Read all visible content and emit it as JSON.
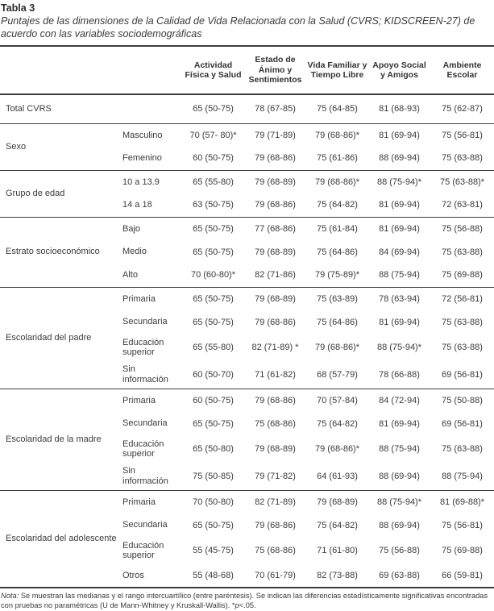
{
  "table": {
    "label": "Tabla 3",
    "title": "Puntajes de las dimensiones de la Calidad de Vida Relacionada con la Salud (CVRS; KIDSCREEN-27) de acuerdo con las variables sociodemográficas",
    "columns": [
      "Actividad Física y Salud",
      "Estado de Ánimo y Sentimientos",
      "Vida Familiar y Tiempo Libre",
      "Apoyo Social y Amigos",
      "Ambiente Escolar"
    ],
    "sections": [
      {
        "variable": "Total CVRS",
        "rows": [
          {
            "category": "",
            "values": [
              "65 (50-75)",
              "78 (67-85)",
              "75 (64-85)",
              "81 (68-93)",
              "75 (62-87)"
            ]
          }
        ]
      },
      {
        "variable": "Sexo",
        "rows": [
          {
            "category": "Masculino",
            "values": [
              "70 (57- 80)*",
              "79 (71-89)",
              "79 (68-86)*",
              "81 (69-94)",
              "75 (56-81)"
            ]
          },
          {
            "category": "Femenino",
            "values": [
              "60 (50-75)",
              "79 (68-86)",
              "75 (61-86)",
              "88 (69-94)",
              "75 (63-88)"
            ]
          }
        ]
      },
      {
        "variable": "Grupo de edad",
        "rows": [
          {
            "category": "10 a 13.9",
            "values": [
              "65 (55-80)",
              "79 (68-89)",
              "79 (68-86)*",
              "88 (75-94)*",
              "75 (63-88)*"
            ]
          },
          {
            "category": "14 a 18",
            "values": [
              "63 (50-75)",
              "79 (68-86)",
              "75 (64-82)",
              "81 (69-94)",
              "72 (63-81)"
            ]
          }
        ]
      },
      {
        "variable": "Estrato socioeconómico",
        "rows": [
          {
            "category": "Bajo",
            "values": [
              "65 (50-75)",
              "77 (68-86)",
              "75 (61-84)",
              "81 (69-94)",
              "75 (56-88)"
            ]
          },
          {
            "category": "Medio",
            "values": [
              "65 (50-75)",
              "79 (68-89)",
              "75 (64-86)",
              "84 (69-94)",
              "75 (63-88)"
            ]
          },
          {
            "category": "Alto",
            "values": [
              "70 (60-80)*",
              "82 (71-86)",
              "79 (75-89)*",
              "88 (75-94)",
              "75 (69-88)"
            ]
          }
        ]
      },
      {
        "variable": "Escolaridad del padre",
        "rows": [
          {
            "category": "Primaria",
            "values": [
              "65 (50-75)",
              "79 (68-89)",
              "75 (63-89)",
              "78 (63-94)",
              "72 (56-81)"
            ]
          },
          {
            "category": "Secundaria",
            "values": [
              "65 (50-75)",
              "79 (68-86)",
              "75 (64-86)",
              "81 (69-94)",
              "75 (63-88)"
            ]
          },
          {
            "category": "Educación superior",
            "values": [
              "65 (55-80)",
              "82 (71-89) *",
              "79 (68-86)*",
              "88 (75-94)*",
              "75 (63-88)"
            ]
          },
          {
            "category": "Sin información",
            "values": [
              "60 (50-70)",
              "71 (61-82)",
              "68 (57-79)",
              "78 (66-88)",
              "69 (56-81)"
            ]
          }
        ]
      },
      {
        "variable": "Escolaridad de la madre",
        "rows": [
          {
            "category": "Primaria",
            "values": [
              "60 (50-75)",
              "79 (68-86)",
              "70 (57-84)",
              "84 (72-94)",
              "75 (50-88)"
            ]
          },
          {
            "category": "Secundaria",
            "values": [
              "65 (50-75)",
              "75 (68-86)",
              "75 (64-82)",
              "81 (69-94)",
              "69 (56-81)"
            ]
          },
          {
            "category": "Educación superior",
            "values": [
              "65 (50-80)",
              "79 (68-89)",
              "79 (68-86)*",
              "88 (75-94)",
              "75 (63-88)"
            ]
          },
          {
            "category": "Sin información",
            "values": [
              "75 (50-85)",
              "79 (71-82)",
              "64 (61-93)",
              "88 (69-94)",
              "88 (75-94)"
            ]
          }
        ]
      },
      {
        "variable": "Escolaridad del adolescente",
        "rows": [
          {
            "category": "Primaria",
            "values": [
              "70 (50-80)",
              "82 (71-89)",
              "79 (68-89)",
              "88 (75-94)*",
              "81 (69-88)*"
            ]
          },
          {
            "category": "Secundaria",
            "values": [
              "65 (50-75)",
              "79 (68-86)",
              "75 (64-82)",
              "88 (69-94)",
              "75 (56-81)"
            ]
          },
          {
            "category": "Educación superior",
            "values": [
              "55 (45-75)",
              "75 (68-86)",
              "71 (61-80)",
              "75 (56-88)",
              "75 (69-88)"
            ]
          },
          {
            "category": "Otros",
            "values": [
              "55 (48-68)",
              "70 (61-79)",
              "82 (73-88)",
              "69 (63-88)",
              "66 (59-81)"
            ]
          }
        ]
      }
    ],
    "note": {
      "label": "Nota:",
      "body": " Se muestran las medianas y el rango intercuartílico (entre paréntesis). Se indican las diferencias estadísticamente significativas encontradas con pruebas no paramétricas (U de Mann-Whitney y Kruskall-Wallis). ",
      "sig_star": "*",
      "sig_p": "p",
      "sig_threshold": "<.05."
    },
    "colors": {
      "text": "#3b3b3b",
      "rule": "#3d3d3d",
      "background": "#ffffff"
    }
  }
}
